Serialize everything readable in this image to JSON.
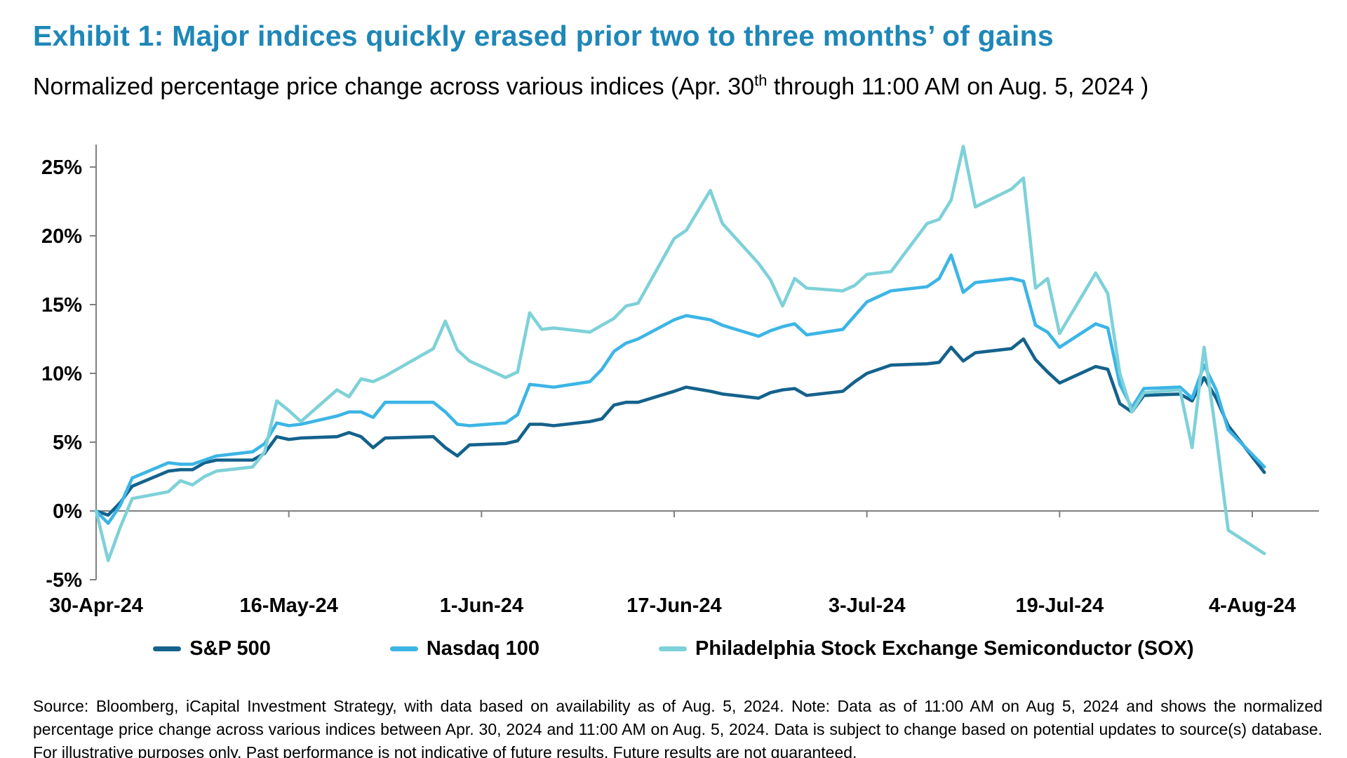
{
  "title": "Exhibit 1: Major indices quickly erased prior two to three months’ of gains",
  "subtitle": {
    "pre": "Normalized percentage price change across various indices (Apr. 30",
    "sup": "th",
    "post": " through 11:00 AM on Aug. 5, 2024 )"
  },
  "colors": {
    "title": "#1e87b8",
    "sp500": "#14628c",
    "nasdaq": "#3cb5e6",
    "sox": "#7ed1d8",
    "axis": "#808080",
    "text": "#000000"
  },
  "legend": [
    {
      "label": "S&P 500"
    },
    {
      "label": "Nasdaq 100"
    },
    {
      "label": "Philadelphia Stock Exchange Semiconductor (SOX)"
    }
  ],
  "footer": "Source: Bloomberg, iCapital Investment Strategy, with data based on availability as of Aug. 5, 2024. Note: Data as of 11:00 AM on Aug 5, 2024 and shows the normalized percentage price change across various indices between Apr. 30, 2024 and 11:00 AM on Aug. 5, 2024. Data is subject to change based on potential updates to source(s) database. For illustrative purposes only. Past performance is not indicative of future results. Future results are not guaranteed.",
  "chart_data": {
    "type": "line",
    "title": "Normalized percentage price change across various indices, Apr 30 2024 through 11:00 AM Aug 5 2024",
    "xlabel": "",
    "ylabel": "",
    "ylim": [
      -5,
      25
    ],
    "yticks": [
      -5,
      0,
      5,
      10,
      15,
      20,
      25
    ],
    "ytick_labels": [
      "-5%",
      "0%",
      "5%",
      "10%",
      "15%",
      "20%",
      "25%"
    ],
    "grid": "baseline-at-zero-only",
    "legend_position": "bottom",
    "xticks": {
      "offsets": [
        0,
        16,
        32,
        48,
        64,
        80,
        96
      ],
      "labels": [
        "30-Apr-24",
        "16-May-24",
        "1-Jun-24",
        "17-Jun-24",
        "3-Jul-24",
        "19-Jul-24",
        "4-Aug-24"
      ]
    },
    "x": [
      "30-Apr",
      "1-May",
      "2-May",
      "3-May",
      "6-May",
      "7-May",
      "8-May",
      "9-May",
      "10-May",
      "13-May",
      "14-May",
      "15-May",
      "16-May",
      "17-May",
      "20-May",
      "21-May",
      "22-May",
      "23-May",
      "24-May",
      "28-May",
      "29-May",
      "30-May",
      "31-May",
      "3-Jun",
      "4-Jun",
      "5-Jun",
      "6-Jun",
      "7-Jun",
      "10-Jun",
      "11-Jun",
      "12-Jun",
      "13-Jun",
      "14-Jun",
      "17-Jun",
      "18-Jun",
      "20-Jun",
      "21-Jun",
      "24-Jun",
      "25-Jun",
      "26-Jun",
      "27-Jun",
      "28-Jun",
      "1-Jul",
      "2-Jul",
      "3-Jul",
      "5-Jul",
      "8-Jul",
      "9-Jul",
      "10-Jul",
      "11-Jul",
      "12-Jul",
      "15-Jul",
      "16-Jul",
      "17-Jul",
      "18-Jul",
      "19-Jul",
      "22-Jul",
      "23-Jul",
      "24-Jul",
      "25-Jul",
      "26-Jul",
      "29-Jul",
      "30-Jul",
      "31-Jul",
      "1-Aug",
      "2-Aug",
      "5-Aug"
    ],
    "x_offsets": [
      0,
      1,
      2,
      3,
      6,
      7,
      8,
      9,
      10,
      13,
      14,
      15,
      16,
      17,
      20,
      21,
      22,
      23,
      24,
      28,
      29,
      30,
      31,
      34,
      35,
      36,
      37,
      38,
      41,
      42,
      43,
      44,
      45,
      48,
      49,
      51,
      52,
      55,
      56,
      57,
      58,
      59,
      62,
      63,
      64,
      66,
      69,
      70,
      71,
      72,
      73,
      76,
      77,
      78,
      79,
      80,
      83,
      84,
      85,
      86,
      87,
      90,
      91,
      92,
      93,
      94,
      97
    ],
    "series": [
      {
        "name": "S&P 500",
        "color_key": "sp500",
        "values": [
          0.0,
          -0.3,
          0.6,
          1.8,
          2.9,
          3.0,
          3.0,
          3.5,
          3.7,
          3.7,
          4.2,
          5.4,
          5.2,
          5.3,
          5.4,
          5.7,
          5.4,
          4.6,
          5.3,
          5.4,
          4.6,
          4.0,
          4.8,
          4.9,
          5.1,
          6.3,
          6.3,
          6.2,
          6.5,
          6.7,
          7.7,
          7.9,
          7.9,
          8.7,
          9.0,
          8.7,
          8.5,
          8.2,
          8.6,
          8.8,
          8.9,
          8.4,
          8.7,
          9.4,
          10.0,
          10.6,
          10.7,
          10.8,
          11.9,
          10.9,
          11.5,
          11.8,
          12.5,
          11.0,
          10.1,
          9.3,
          10.5,
          10.3,
          7.8,
          7.2,
          8.4,
          8.5,
          8.0,
          9.7,
          8.2,
          6.2,
          2.8
        ]
      },
      {
        "name": "Nasdaq 100",
        "color_key": "nasdaq",
        "values": [
          0.0,
          -0.9,
          0.4,
          2.4,
          3.5,
          3.4,
          3.4,
          3.7,
          4.0,
          4.3,
          4.9,
          6.4,
          6.2,
          6.3,
          6.9,
          7.2,
          7.2,
          6.8,
          7.9,
          7.9,
          7.2,
          6.3,
          6.2,
          6.4,
          7.0,
          9.2,
          9.1,
          9.0,
          9.4,
          10.3,
          11.6,
          12.2,
          12.5,
          13.9,
          14.2,
          13.9,
          13.5,
          12.7,
          13.1,
          13.4,
          13.6,
          12.8,
          13.2,
          14.2,
          15.2,
          16.0,
          16.3,
          16.9,
          18.6,
          15.9,
          16.6,
          16.9,
          16.7,
          13.5,
          13.0,
          11.9,
          13.6,
          13.3,
          9.2,
          7.5,
          8.9,
          9.0,
          8.2,
          10.6,
          8.8,
          5.9,
          3.2
        ]
      },
      {
        "name": "Philadelphia Stock Exchange Semiconductor (SOX)",
        "color_key": "sox",
        "values": [
          0.0,
          -3.6,
          -1.2,
          0.9,
          1.4,
          2.2,
          1.9,
          2.5,
          2.9,
          3.2,
          4.3,
          8.0,
          7.3,
          6.5,
          8.8,
          8.3,
          9.6,
          9.4,
          9.8,
          11.8,
          13.8,
          11.7,
          10.9,
          9.7,
          10.1,
          14.4,
          13.2,
          13.3,
          13.0,
          13.5,
          14.0,
          14.9,
          15.1,
          19.8,
          20.4,
          23.3,
          20.9,
          18.0,
          16.8,
          14.9,
          16.9,
          16.2,
          16.0,
          16.4,
          17.2,
          17.4,
          20.9,
          21.2,
          22.6,
          26.5,
          22.1,
          23.4,
          24.2,
          16.2,
          16.9,
          12.9,
          17.3,
          15.8,
          10.0,
          7.2,
          8.6,
          8.8,
          4.6,
          11.9,
          5.5,
          -1.4,
          -3.1
        ]
      }
    ]
  }
}
